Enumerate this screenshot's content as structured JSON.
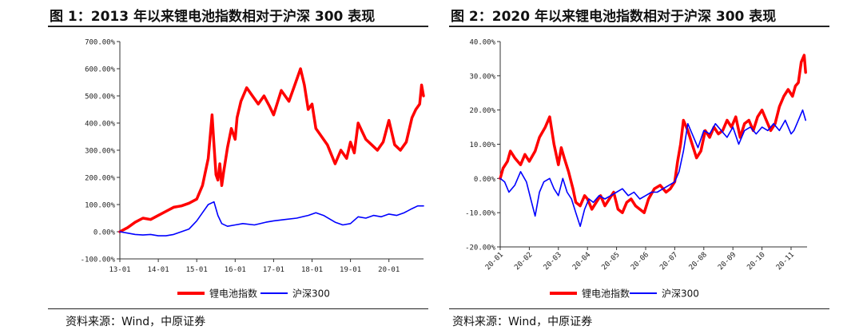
{
  "panels": [
    {
      "title": "图 1：2013 年以来锂电池指数相对于沪深 300 表现",
      "source": "资料来源：Wind，中原证券"
    },
    {
      "title": "图 2：2020 年以来锂电池指数相对于沪深 300 表现",
      "source": "资料来源：Wind，中原证券"
    }
  ],
  "chart_data": [
    {
      "type": "line",
      "ylim": [
        -100,
        700
      ],
      "yticks": [
        -100,
        0,
        100,
        200,
        300,
        400,
        500,
        600,
        700
      ],
      "ytick_labels": [
        "-100.00%",
        "0.00%",
        "100.00%",
        "200.00%",
        "300.00%",
        "400.00%",
        "500.00%",
        "600.00%",
        "700.00%"
      ],
      "xlim": [
        2013.0,
        2020.9
      ],
      "xticks": [
        2013,
        2014,
        2015,
        2016,
        2017,
        2018,
        2019,
        2020
      ],
      "xtick_labels": [
        "13-01",
        "14-01",
        "15-01",
        "16-01",
        "17-01",
        "18-01",
        "19-01",
        "20-01"
      ],
      "legend": "bottom-center",
      "series": [
        {
          "name": "锂电池指数",
          "color": "#ff0000",
          "x": [
            2013.0,
            2013.2,
            2013.4,
            2013.6,
            2013.8,
            2014.0,
            2014.2,
            2014.4,
            2014.6,
            2014.8,
            2015.0,
            2015.15,
            2015.3,
            2015.4,
            2015.45,
            2015.5,
            2015.55,
            2015.6,
            2015.65,
            2015.7,
            2015.8,
            2015.9,
            2016.0,
            2016.05,
            2016.15,
            2016.3,
            2016.45,
            2016.6,
            2016.75,
            2016.9,
            2017.0,
            2017.2,
            2017.4,
            2017.55,
            2017.7,
            2017.8,
            2017.9,
            2018.0,
            2018.1,
            2018.25,
            2018.4,
            2018.6,
            2018.75,
            2018.9,
            2019.0,
            2019.1,
            2019.2,
            2019.3,
            2019.4,
            2019.55,
            2019.7,
            2019.85,
            2020.0,
            2020.15,
            2020.3,
            2020.45,
            2020.6,
            2020.7,
            2020.8,
            2020.85,
            2020.9
          ],
          "y": [
            0,
            15,
            35,
            50,
            45,
            60,
            75,
            90,
            95,
            105,
            120,
            170,
            270,
            430,
            320,
            210,
            190,
            250,
            170,
            220,
            310,
            380,
            340,
            420,
            480,
            530,
            500,
            470,
            500,
            460,
            430,
            520,
            480,
            540,
            600,
            540,
            450,
            470,
            380,
            350,
            320,
            250,
            300,
            270,
            330,
            290,
            400,
            370,
            340,
            320,
            300,
            330,
            410,
            320,
            300,
            330,
            420,
            450,
            470,
            540,
            500
          ]
        },
        {
          "name": "沪深300",
          "color": "#0000ff",
          "x": [
            2013.0,
            2013.2,
            2013.4,
            2013.6,
            2013.8,
            2014.0,
            2014.2,
            2014.4,
            2014.6,
            2014.8,
            2015.0,
            2015.15,
            2015.3,
            2015.45,
            2015.55,
            2015.65,
            2015.8,
            2016.0,
            2016.2,
            2016.5,
            2016.8,
            2017.0,
            2017.3,
            2017.6,
            2017.9,
            2018.1,
            2018.3,
            2018.6,
            2018.8,
            2019.0,
            2019.2,
            2019.4,
            2019.6,
            2019.8,
            2020.0,
            2020.2,
            2020.4,
            2020.6,
            2020.75,
            2020.9
          ],
          "y": [
            0,
            -5,
            -10,
            -12,
            -10,
            -15,
            -15,
            -10,
            0,
            10,
            40,
            70,
            100,
            110,
            60,
            30,
            20,
            25,
            30,
            25,
            35,
            40,
            45,
            50,
            60,
            70,
            60,
            35,
            25,
            30,
            55,
            50,
            60,
            55,
            65,
            60,
            70,
            85,
            95,
            95
          ]
        }
      ]
    },
    {
      "type": "line",
      "ylim": [
        -20,
        40
      ],
      "yticks": [
        -20,
        -10,
        0,
        10,
        20,
        30,
        40
      ],
      "ytick_labels": [
        "-20.00%",
        "-10.00%",
        "0.00%",
        "10.00%",
        "20.00%",
        "30.00%",
        "40.00%"
      ],
      "xlim": [
        1,
        11.55
      ],
      "xticks": [
        1,
        2,
        3,
        4,
        5,
        6,
        7,
        8,
        9,
        10,
        11
      ],
      "xtick_labels": [
        "20-01",
        "20-02",
        "20-03",
        "20-04",
        "20-05",
        "20-06",
        "20-07",
        "20-08",
        "20-09",
        "20-10",
        "20-11"
      ],
      "legend": "bottom-center",
      "series": [
        {
          "name": "锂电池指数",
          "color": "#ff0000",
          "x": [
            1.0,
            1.1,
            1.25,
            1.35,
            1.5,
            1.7,
            1.85,
            2.0,
            2.2,
            2.35,
            2.55,
            2.7,
            2.85,
            3.0,
            3.1,
            3.2,
            3.35,
            3.5,
            3.6,
            3.75,
            3.9,
            4.0,
            4.15,
            4.3,
            4.45,
            4.6,
            4.75,
            4.9,
            5.05,
            5.2,
            5.35,
            5.5,
            5.65,
            5.8,
            5.95,
            6.1,
            6.3,
            6.5,
            6.7,
            6.85,
            7.0,
            7.1,
            7.2,
            7.3,
            7.45,
            7.6,
            7.75,
            7.9,
            8.05,
            8.2,
            8.35,
            8.5,
            8.65,
            8.8,
            8.95,
            9.1,
            9.25,
            9.4,
            9.55,
            9.7,
            9.85,
            10.0,
            10.15,
            10.3,
            10.45,
            10.6,
            10.75,
            10.9,
            11.05,
            11.15,
            11.25,
            11.35,
            11.45,
            11.5
          ],
          "y": [
            0,
            3,
            5,
            8,
            6,
            4,
            7,
            5,
            8,
            12,
            15,
            18,
            10,
            4,
            9,
            6,
            2,
            -3,
            -7,
            -8,
            -5,
            -6,
            -9,
            -7,
            -5,
            -8,
            -6,
            -4,
            -9,
            -10,
            -7,
            -6,
            -8,
            -9,
            -10,
            -6,
            -3,
            -2,
            -4,
            -3,
            -1,
            5,
            10,
            17,
            14,
            10,
            6,
            8,
            14,
            12,
            15,
            13,
            14,
            17,
            15,
            18,
            12,
            16,
            17,
            14,
            18,
            20,
            17,
            14,
            16,
            21,
            24,
            26,
            24,
            27,
            28,
            34,
            36,
            31
          ]
        },
        {
          "name": "沪深300",
          "color": "#0000ff",
          "x": [
            1.0,
            1.15,
            1.3,
            1.5,
            1.7,
            1.9,
            2.05,
            2.2,
            2.35,
            2.5,
            2.7,
            2.85,
            3.0,
            3.15,
            3.3,
            3.45,
            3.6,
            3.75,
            3.9,
            4.05,
            4.2,
            4.4,
            4.6,
            4.8,
            5.0,
            5.2,
            5.4,
            5.6,
            5.8,
            6.0,
            6.2,
            6.4,
            6.6,
            6.8,
            7.0,
            7.15,
            7.3,
            7.45,
            7.6,
            7.8,
            8.0,
            8.2,
            8.4,
            8.6,
            8.8,
            9.0,
            9.2,
            9.4,
            9.6,
            9.8,
            10.0,
            10.2,
            10.4,
            10.6,
            10.8,
            11.0,
            11.1,
            11.2,
            11.3,
            11.4,
            11.5
          ],
          "y": [
            0,
            -1,
            -4,
            -2,
            2,
            -1,
            -6,
            -11,
            -4,
            -1,
            0,
            -3,
            -5,
            0,
            -4,
            -6,
            -10,
            -14,
            -9,
            -6,
            -7,
            -5,
            -6,
            -5,
            -4,
            -3,
            -5,
            -4,
            -6,
            -5,
            -4,
            -4,
            -3,
            -2,
            -1,
            2,
            8,
            16,
            13,
            9,
            14,
            13,
            16,
            14,
            12,
            15,
            10,
            14,
            15,
            13,
            15,
            14,
            16,
            14,
            17,
            13,
            14,
            16,
            18,
            20,
            17
          ]
        }
      ]
    }
  ]
}
